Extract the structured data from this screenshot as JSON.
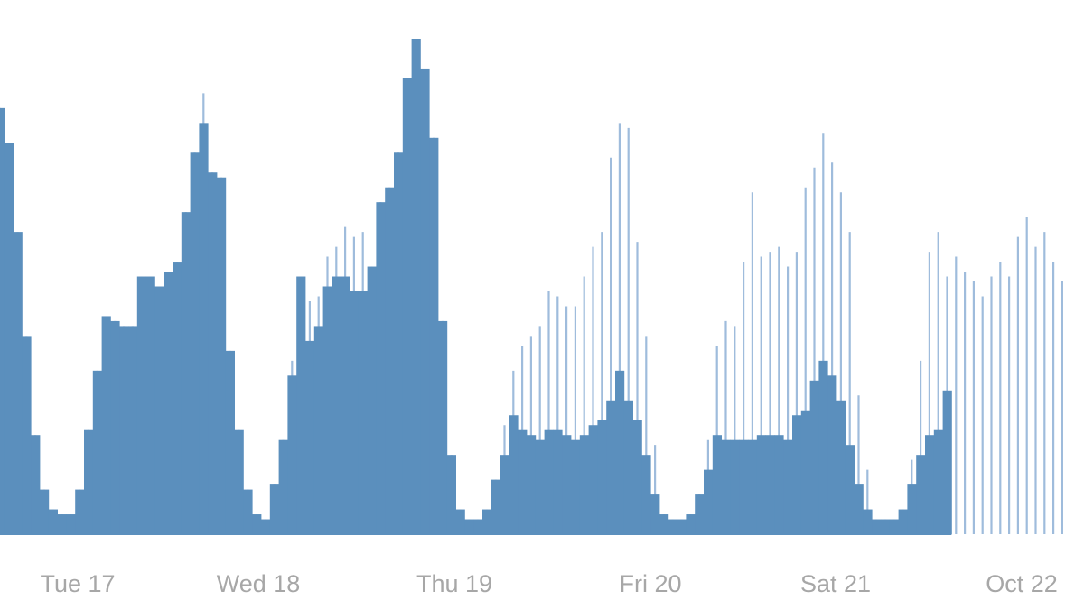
{
  "chart_data": {
    "type": "bar",
    "title": "",
    "xlabel": "",
    "ylabel": "",
    "ylim": [
      0,
      100
    ],
    "x_ticks": [
      "Tue 17",
      "Wed 18",
      "Thu 19",
      "Fri 20",
      "Sat 21",
      "Oct 22"
    ],
    "grid": false,
    "legend": "none",
    "colors": {
      "solid": "#5b8fbd",
      "outline": "#9fbcdc",
      "text": "#a7a7a7",
      "baseline": "#5b8fbd"
    },
    "series": [
      {
        "role": "solid",
        "values": [
          86,
          79,
          61,
          40,
          20,
          9,
          5,
          4,
          4,
          9,
          21,
          33,
          44,
          43,
          42,
          42,
          52,
          52,
          50,
          53,
          55,
          65,
          77,
          83,
          73,
          72,
          37,
          21,
          9,
          4,
          3,
          10,
          19,
          32,
          52,
          39,
          42,
          50,
          52,
          52,
          49,
          49,
          54,
          67,
          70,
          77,
          92,
          100,
          94,
          80,
          43,
          16,
          5,
          3,
          3,
          5,
          11,
          16,
          24,
          21,
          20,
          19,
          21,
          21,
          20,
          19,
          20,
          22,
          23,
          27,
          33,
          27,
          23,
          16,
          8,
          4,
          3,
          3,
          4,
          8,
          13,
          20,
          19,
          19,
          19,
          19,
          20,
          20,
          20,
          19,
          24,
          25,
          31,
          35,
          32,
          27,
          18,
          10,
          5,
          3,
          3,
          3,
          5,
          10,
          16,
          20,
          21,
          29
        ]
      },
      {
        "role": "outline",
        "values": [
          86,
          79,
          61,
          40,
          20,
          9,
          5,
          4,
          4,
          9,
          21,
          33,
          44,
          43,
          42,
          42,
          52,
          52,
          50,
          53,
          55,
          65,
          77,
          89,
          73,
          72,
          37,
          21,
          9,
          4,
          3,
          10,
          19,
          35,
          52,
          47,
          48,
          56,
          58,
          62,
          60,
          61,
          54,
          67,
          70,
          77,
          92,
          100,
          94,
          80,
          43,
          16,
          5,
          3,
          3,
          5,
          11,
          22,
          33,
          38,
          40,
          42,
          49,
          48,
          46,
          46,
          52,
          58,
          61,
          76,
          83,
          82,
          59,
          40,
          18,
          4,
          3,
          3,
          4,
          8,
          19,
          38,
          43,
          42,
          55,
          69,
          56,
          57,
          58,
          54,
          57,
          70,
          74,
          81,
          75,
          69,
          61,
          28,
          13,
          3,
          3,
          3,
          5,
          15,
          35,
          57,
          61,
          52,
          56,
          53,
          51,
          48,
          52,
          55,
          52,
          60,
          64,
          58,
          61,
          55,
          51
        ]
      }
    ]
  }
}
